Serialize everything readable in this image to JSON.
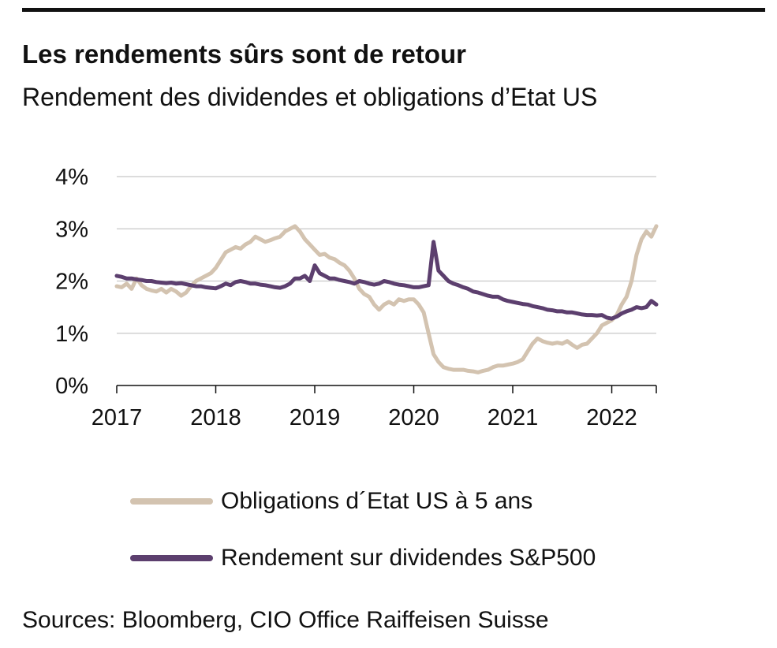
{
  "header": {
    "title": "Les rendements sûrs sont de retour",
    "subtitle": "Rendement des dividendes et obligations d’Etat US"
  },
  "footer": {
    "source": "Sources: Bloomberg, CIO Office Raiffeisen Suisse"
  },
  "chart_data": {
    "type": "line",
    "title": "Les rendements sûrs sont de retour",
    "subtitle": "Rendement des dividendes et obligations d’Etat US",
    "xlim": [
      2017,
      2022.45
    ],
    "ylim": [
      0,
      4
    ],
    "x_ticks": [
      2017,
      2018,
      2019,
      2020,
      2021,
      2022
    ],
    "x_tick_labels": [
      "2017",
      "2018",
      "2019",
      "2020",
      "2021",
      "2022"
    ],
    "y_ticks": [
      0,
      1,
      2,
      3,
      4
    ],
    "y_tick_labels": [
      "0%",
      "1%",
      "2%",
      "3%",
      "4%"
    ],
    "grid": "horizontal",
    "legend_position": "bottom",
    "series": [
      {
        "name": "Obligations d´Etat US à 5 ans",
        "color": "#d3c3b0",
        "x": [
          2017.0,
          2017.05,
          2017.1,
          2017.15,
          2017.2,
          2017.25,
          2017.3,
          2017.35,
          2017.4,
          2017.45,
          2017.5,
          2017.55,
          2017.6,
          2017.65,
          2017.7,
          2017.75,
          2017.8,
          2017.85,
          2017.9,
          2017.95,
          2018.0,
          2018.05,
          2018.1,
          2018.15,
          2018.2,
          2018.25,
          2018.3,
          2018.35,
          2018.4,
          2018.45,
          2018.5,
          2018.55,
          2018.6,
          2018.65,
          2018.7,
          2018.75,
          2018.8,
          2018.85,
          2018.9,
          2018.95,
          2019.0,
          2019.05,
          2019.1,
          2019.15,
          2019.2,
          2019.25,
          2019.3,
          2019.35,
          2019.4,
          2019.45,
          2019.5,
          2019.55,
          2019.6,
          2019.65,
          2019.7,
          2019.75,
          2019.8,
          2019.85,
          2019.9,
          2019.95,
          2020.0,
          2020.05,
          2020.1,
          2020.15,
          2020.2,
          2020.25,
          2020.3,
          2020.35,
          2020.4,
          2020.45,
          2020.5,
          2020.55,
          2020.6,
          2020.65,
          2020.7,
          2020.75,
          2020.8,
          2020.85,
          2020.9,
          2020.95,
          2021.0,
          2021.05,
          2021.1,
          2021.15,
          2021.2,
          2021.25,
          2021.3,
          2021.35,
          2021.4,
          2021.45,
          2021.5,
          2021.55,
          2021.6,
          2021.65,
          2021.7,
          2021.75,
          2021.8,
          2021.85,
          2021.9,
          2021.95,
          2022.0,
          2022.05,
          2022.1,
          2022.15,
          2022.2,
          2022.25,
          2022.3,
          2022.35,
          2022.4,
          2022.45
        ],
        "values": [
          1.9,
          1.88,
          1.95,
          1.85,
          2.05,
          1.92,
          1.85,
          1.82,
          1.8,
          1.85,
          1.78,
          1.85,
          1.8,
          1.72,
          1.78,
          1.9,
          2.0,
          2.05,
          2.1,
          2.15,
          2.25,
          2.4,
          2.55,
          2.6,
          2.65,
          2.62,
          2.7,
          2.75,
          2.85,
          2.8,
          2.75,
          2.78,
          2.82,
          2.85,
          2.95,
          3.0,
          3.05,
          2.95,
          2.8,
          2.7,
          2.6,
          2.5,
          2.52,
          2.45,
          2.42,
          2.35,
          2.3,
          2.2,
          2.05,
          1.85,
          1.75,
          1.7,
          1.55,
          1.45,
          1.55,
          1.6,
          1.55,
          1.65,
          1.62,
          1.65,
          1.65,
          1.55,
          1.4,
          1.0,
          0.6,
          0.45,
          0.35,
          0.32,
          0.3,
          0.3,
          0.3,
          0.28,
          0.27,
          0.25,
          0.28,
          0.3,
          0.35,
          0.38,
          0.38,
          0.4,
          0.42,
          0.45,
          0.5,
          0.65,
          0.8,
          0.9,
          0.85,
          0.82,
          0.8,
          0.82,
          0.8,
          0.85,
          0.78,
          0.72,
          0.78,
          0.8,
          0.9,
          1.0,
          1.15,
          1.2,
          1.25,
          1.35,
          1.55,
          1.7,
          2.0,
          2.5,
          2.8,
          2.95,
          2.85,
          3.05
        ]
      },
      {
        "name": "Rendement sur dividendes S&P500",
        "color": "#5c3f6e",
        "x": [
          2017.0,
          2017.05,
          2017.1,
          2017.15,
          2017.2,
          2017.25,
          2017.3,
          2017.35,
          2017.4,
          2017.45,
          2017.5,
          2017.55,
          2017.6,
          2017.65,
          2017.7,
          2017.75,
          2017.8,
          2017.85,
          2017.9,
          2017.95,
          2018.0,
          2018.05,
          2018.1,
          2018.15,
          2018.2,
          2018.25,
          2018.3,
          2018.35,
          2018.4,
          2018.45,
          2018.5,
          2018.55,
          2018.6,
          2018.65,
          2018.7,
          2018.75,
          2018.8,
          2018.85,
          2018.9,
          2018.95,
          2019.0,
          2019.05,
          2019.1,
          2019.15,
          2019.2,
          2019.25,
          2019.3,
          2019.35,
          2019.4,
          2019.45,
          2019.5,
          2019.55,
          2019.6,
          2019.65,
          2019.7,
          2019.75,
          2019.8,
          2019.85,
          2019.9,
          2019.95,
          2020.0,
          2020.05,
          2020.1,
          2020.15,
          2020.2,
          2020.25,
          2020.3,
          2020.35,
          2020.4,
          2020.45,
          2020.5,
          2020.55,
          2020.6,
          2020.65,
          2020.7,
          2020.75,
          2020.8,
          2020.85,
          2020.9,
          2020.95,
          2021.0,
          2021.05,
          2021.1,
          2021.15,
          2021.2,
          2021.25,
          2021.3,
          2021.35,
          2021.4,
          2021.45,
          2021.5,
          2021.55,
          2021.6,
          2021.65,
          2021.7,
          2021.75,
          2021.8,
          2021.85,
          2021.9,
          2021.95,
          2022.0,
          2022.05,
          2022.1,
          2022.15,
          2022.2,
          2022.25,
          2022.3,
          2022.35,
          2022.4,
          2022.45
        ],
        "values": [
          2.1,
          2.08,
          2.05,
          2.05,
          2.03,
          2.02,
          2.0,
          2.0,
          1.98,
          1.97,
          1.96,
          1.97,
          1.95,
          1.96,
          1.94,
          1.92,
          1.9,
          1.9,
          1.88,
          1.87,
          1.86,
          1.9,
          1.95,
          1.92,
          1.98,
          2.0,
          1.98,
          1.95,
          1.95,
          1.93,
          1.92,
          1.9,
          1.88,
          1.87,
          1.9,
          1.95,
          2.05,
          2.05,
          2.1,
          2.0,
          2.3,
          2.15,
          2.1,
          2.05,
          2.05,
          2.02,
          2.0,
          1.98,
          1.95,
          2.0,
          1.98,
          1.95,
          1.93,
          1.95,
          2.0,
          1.98,
          1.95,
          1.93,
          1.92,
          1.9,
          1.88,
          1.88,
          1.9,
          1.92,
          2.75,
          2.2,
          2.1,
          2.0,
          1.95,
          1.92,
          1.88,
          1.85,
          1.8,
          1.78,
          1.75,
          1.72,
          1.7,
          1.7,
          1.65,
          1.62,
          1.6,
          1.58,
          1.56,
          1.55,
          1.52,
          1.5,
          1.48,
          1.45,
          1.44,
          1.42,
          1.42,
          1.4,
          1.4,
          1.38,
          1.36,
          1.35,
          1.35,
          1.34,
          1.35,
          1.3,
          1.28,
          1.32,
          1.38,
          1.42,
          1.45,
          1.5,
          1.48,
          1.5,
          1.62,
          1.55
        ]
      }
    ]
  }
}
